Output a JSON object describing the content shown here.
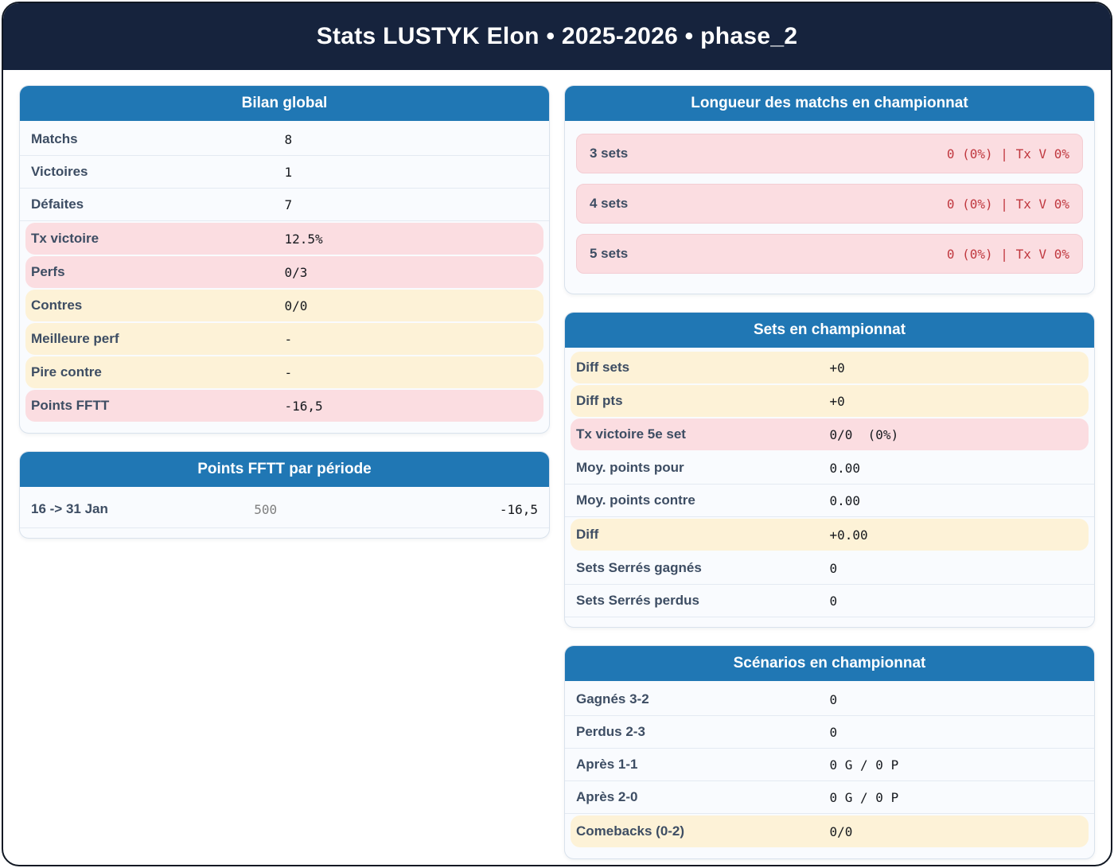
{
  "header": {
    "title": "Stats LUSTYK Elon • 2025-2026 • phase_2"
  },
  "colors": {
    "header_navy": "#16233d",
    "card_title_blue": "#2077b4",
    "highlight_pink": "#fbdde1",
    "highlight_cream": "#fdf2d7",
    "pink_value_red": "#c0383f"
  },
  "cards": {
    "bilan": {
      "title": "Bilan global",
      "rows": [
        {
          "label": "Matchs",
          "value": "8"
        },
        {
          "label": "Victoires",
          "value": "1"
        },
        {
          "label": "Défaites",
          "value": "7"
        },
        {
          "label": "Tx victoire",
          "value": "12.5%"
        },
        {
          "label": "Perfs",
          "value": "0/3"
        },
        {
          "label": "Contres",
          "value": "0/0"
        },
        {
          "label": "Meilleure perf",
          "value": "-"
        },
        {
          "label": "Pire contre",
          "value": "-"
        },
        {
          "label": "Points FFTT",
          "value": "-16,5"
        }
      ]
    },
    "periodes": {
      "title": "Points FFTT par période",
      "rows": [
        {
          "label": "16 -> 31 Jan",
          "points": "500",
          "delta": "-16,5"
        }
      ]
    },
    "longueur": {
      "title": "Longueur des matchs en championnat",
      "rows": [
        {
          "label": "3 sets",
          "value": "0 (0%) | Tx V 0%"
        },
        {
          "label": "4 sets",
          "value": "0 (0%) | Tx V 0%"
        },
        {
          "label": "5 sets",
          "value": "0 (0%) | Tx V 0%"
        }
      ]
    },
    "sets": {
      "title": "Sets en championnat",
      "rows": [
        {
          "label": "Diff sets",
          "value": "+0"
        },
        {
          "label": "Diff pts",
          "value": "+0"
        },
        {
          "label": "Tx victoire 5e set",
          "value": "0/0  (0%)"
        },
        {
          "label": "Moy. points pour",
          "value": "0.00"
        },
        {
          "label": "Moy. points contre",
          "value": "0.00"
        },
        {
          "label": "Diff",
          "value": "+0.00"
        },
        {
          "label": "Sets Serrés gagnés",
          "value": "0"
        },
        {
          "label": "Sets Serrés perdus",
          "value": "0"
        }
      ]
    },
    "scenarios": {
      "title": "Scénarios en championnat",
      "rows": [
        {
          "label": "Gagnés 3-2",
          "value": "0"
        },
        {
          "label": "Perdus 2-3",
          "value": "0"
        },
        {
          "label": "Après 1-1",
          "value": "0 G / 0 P"
        },
        {
          "label": "Après 2-0",
          "value": "0 G / 0 P"
        },
        {
          "label": "Comebacks (0-2)",
          "value": "0/0"
        }
      ]
    }
  }
}
